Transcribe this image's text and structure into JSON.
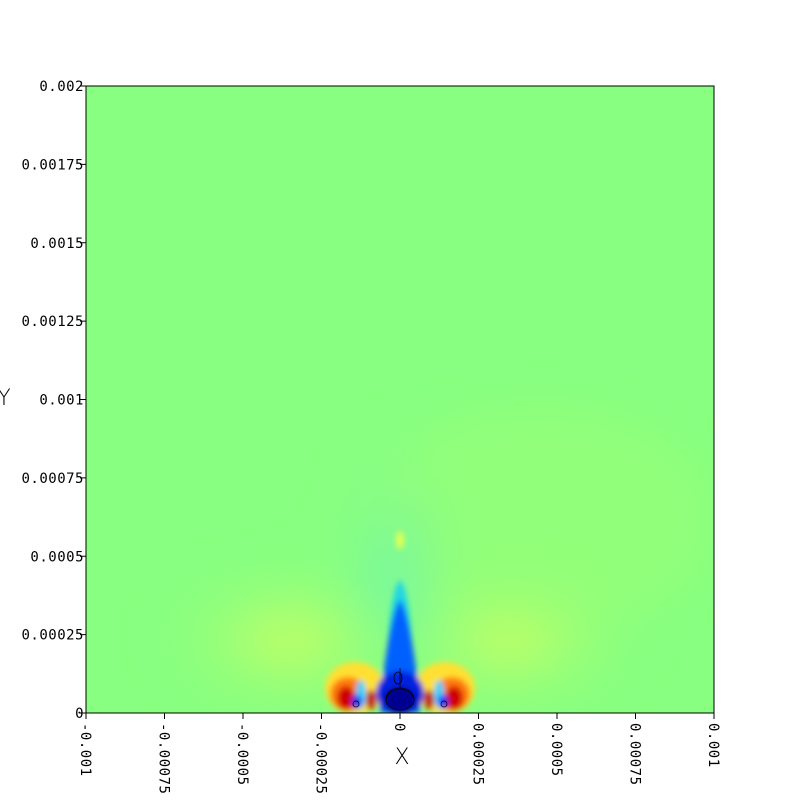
{
  "chart_data": {
    "type": "heatmap",
    "title": "",
    "xlabel": "X",
    "ylabel": "Y",
    "xlim": [
      -0.001,
      0.001
    ],
    "ylim": [
      0,
      0.002
    ],
    "x_ticks": [
      {
        "value": -0.001,
        "label": "-0.001"
      },
      {
        "value": -0.00075,
        "label": "-0.00075"
      },
      {
        "value": -0.0005,
        "label": "-0.0005"
      },
      {
        "value": -0.00025,
        "label": "-0.00025"
      },
      {
        "value": 0,
        "label": "0"
      },
      {
        "value": 0.00025,
        "label": "0.00025"
      },
      {
        "value": 0.0005,
        "label": "0.0005"
      },
      {
        "value": 0.00075,
        "label": "0.00075"
      },
      {
        "value": 0.001,
        "label": "0.001"
      }
    ],
    "y_ticks": [
      {
        "value": 0,
        "label": "0"
      },
      {
        "value": 0.00025,
        "label": "0.00025"
      },
      {
        "value": 0.0005,
        "label": "0.0005"
      },
      {
        "value": 0.00075,
        "label": "0.00075"
      },
      {
        "value": 0.001,
        "label": "0.001"
      },
      {
        "value": 0.00125,
        "label": "0.00125"
      },
      {
        "value": 0.0015,
        "label": "0.0015"
      },
      {
        "value": 0.00175,
        "label": "0.00175"
      },
      {
        "value": 0.002,
        "label": "0.002"
      }
    ],
    "grid": false,
    "colormap": "jet",
    "background_color": "#88ff80",
    "features": [
      {
        "kind": "hot",
        "x": -0.00018,
        "y": 2e-05,
        "rx": 7e-05,
        "ry": 0.00012
      },
      {
        "kind": "hot",
        "x": 0.00018,
        "y": 2e-05,
        "rx": 7e-05,
        "ry": 0.00012
      },
      {
        "kind": "cold",
        "x": 0,
        "y": 6e-05,
        "rx": 9e-05,
        "ry": 0.00045
      }
    ]
  }
}
